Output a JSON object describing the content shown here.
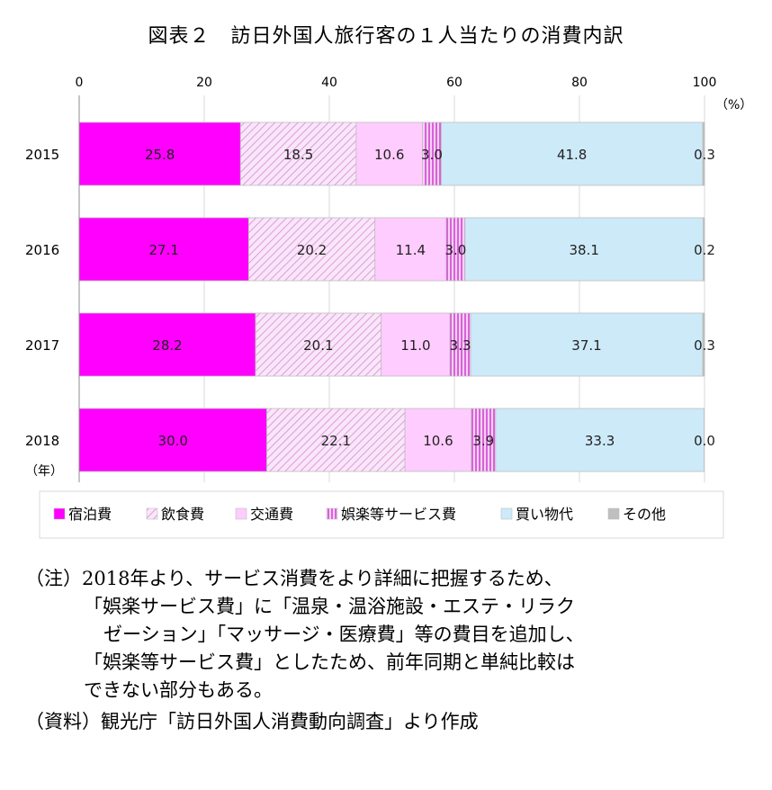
{
  "title": "図表２　訪日外国人旅行客の１人当たりの消費内訳",
  "chart_data": {
    "type": "bar",
    "orientation": "horizontal",
    "stacked": true,
    "categories": [
      "2015",
      "2016",
      "2017",
      "2018"
    ],
    "category_axis_unit": "（年）",
    "value_axis_unit": "（%）",
    "xlim": [
      0,
      100
    ],
    "xticks": [
      "0",
      "20",
      "40",
      "60",
      "80",
      "100"
    ],
    "legend_position": "bottom",
    "grid": true,
    "series": [
      {
        "name": "宿泊費",
        "color": "#ff00ff",
        "pattern": "solid",
        "values": [
          25.8,
          27.1,
          28.2,
          30.0
        ],
        "labels": [
          "25.8",
          "27.1",
          "28.2",
          "30.0"
        ]
      },
      {
        "name": "飲食費",
        "color": "#f4c2f4",
        "pattern": "diag",
        "values": [
          18.5,
          20.2,
          20.1,
          22.1
        ],
        "labels": [
          "18.5",
          "20.2",
          "20.1",
          "22.1"
        ]
      },
      {
        "name": "交通費",
        "color": "#ffccff",
        "pattern": "solid",
        "values": [
          10.6,
          11.4,
          11.0,
          10.6
        ],
        "labels": [
          "10.6",
          "11.4",
          "11.0",
          "10.6"
        ]
      },
      {
        "name": "娯楽等サービス費",
        "color": "#e070e0",
        "pattern": "vert",
        "values": [
          3.0,
          3.0,
          3.3,
          3.9
        ],
        "labels": [
          "3.0",
          "3.0",
          "3.3",
          "3.9"
        ]
      },
      {
        "name": "買い物代",
        "color": "#cdeaf9",
        "pattern": "solid",
        "values": [
          41.8,
          38.1,
          37.1,
          33.3
        ],
        "labels": [
          "41.8",
          "38.1",
          "37.1",
          "33.3"
        ]
      },
      {
        "name": "その他",
        "color": "#bfbfbf",
        "pattern": "solid",
        "values": [
          0.3,
          0.2,
          0.3,
          0.0
        ],
        "labels": [
          "0.3",
          "0.2",
          "0.3",
          "0.0"
        ]
      }
    ]
  },
  "notes": {
    "note_head": "（注）",
    "note_lines": [
      "2018年より、サービス消費をより詳細に把握するため、",
      "「娯楽サービス費」に「温泉・温浴施設・エステ・リラク",
      "ゼーション」「マッサージ・医療費」等の費目を追加し、",
      "「娯楽等サービス費」としたため、前年同期と単純比較は",
      "できない部分もある。"
    ],
    "source_head": "（資料）",
    "source_text": "観光庁「訪日外国人消費動向調査」より作成"
  }
}
